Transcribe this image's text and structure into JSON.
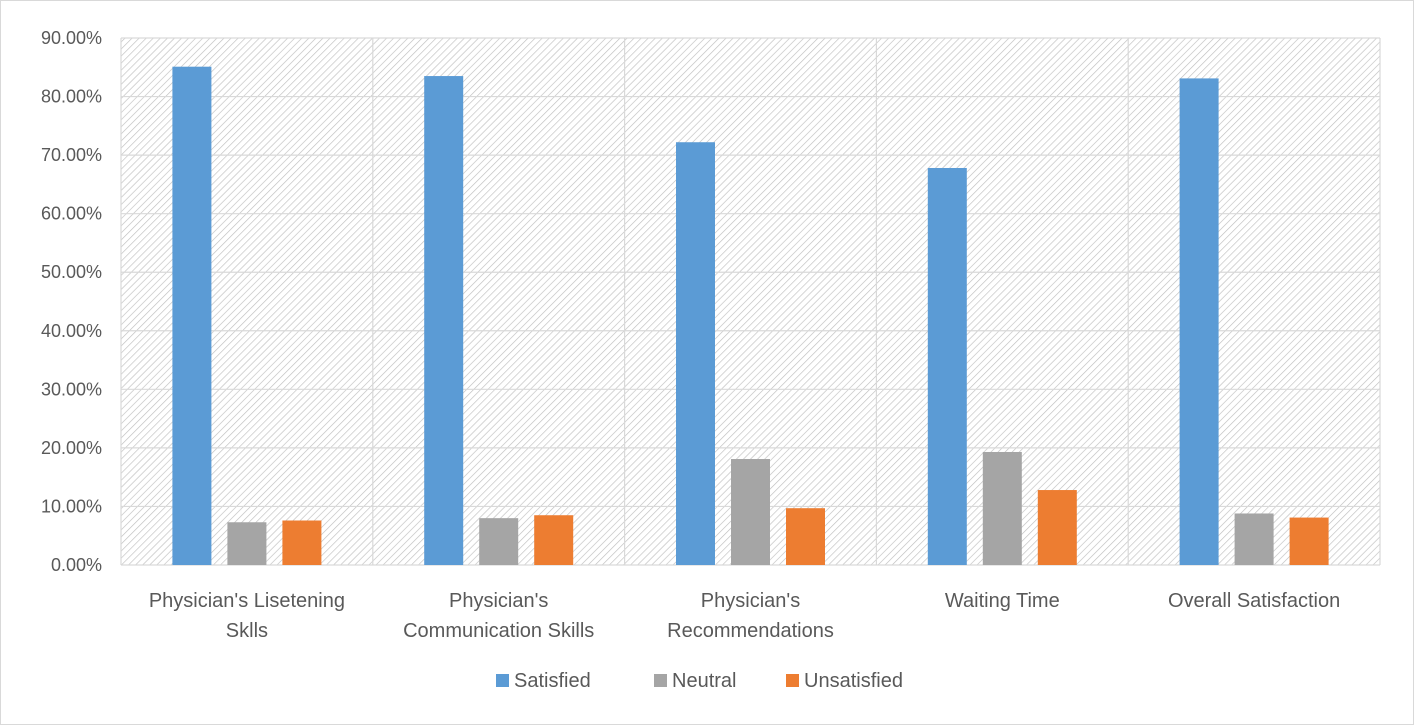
{
  "chart_data": {
    "type": "bar",
    "title": "",
    "xlabel": "",
    "ylabel": "",
    "ylim": [
      0,
      0.9
    ],
    "ytick_step": 0.1,
    "ytick_labels": [
      "0.00%",
      "10.00%",
      "20.00%",
      "30.00%",
      "40.00%",
      "50.00%",
      "60.00%",
      "70.00%",
      "80.00%",
      "90.00%"
    ],
    "categories": [
      [
        "Physician's Lisetening",
        "Sklls"
      ],
      [
        "Physician's",
        "Communication Skills"
      ],
      [
        "Physician's",
        "Recommendations"
      ],
      [
        "Waiting Time"
      ],
      [
        "Overall Satisfaction"
      ]
    ],
    "series": [
      {
        "name": "Satisfied",
        "color": "#5b9bd5",
        "values": [
          0.851,
          0.835,
          0.722,
          0.678,
          0.831
        ]
      },
      {
        "name": "Neutral",
        "color": "#a5a5a5",
        "values": [
          0.073,
          0.08,
          0.181,
          0.193,
          0.088
        ]
      },
      {
        "name": "Unsatisfied",
        "color": "#ed7d31",
        "values": [
          0.076,
          0.085,
          0.097,
          0.128,
          0.081
        ]
      }
    ],
    "grid": true,
    "plot_pattern": "diagonal-hatch",
    "legend_position": "bottom"
  }
}
